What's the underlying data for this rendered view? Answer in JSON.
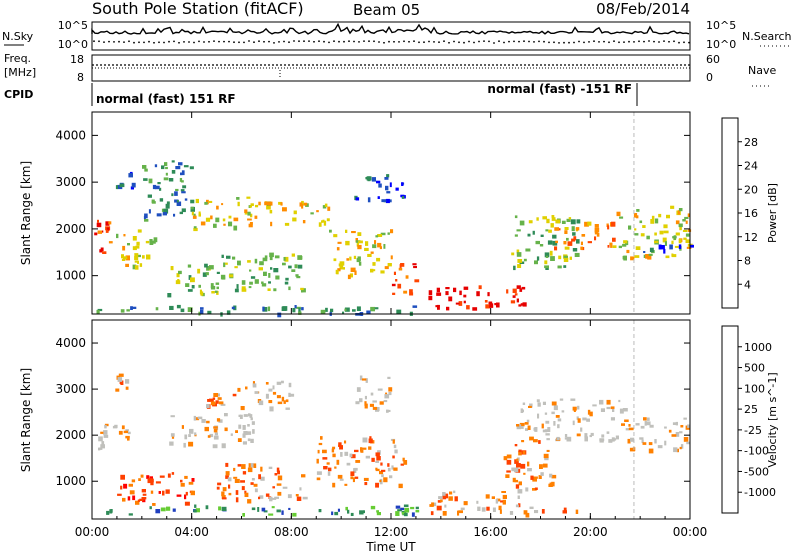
{
  "header": {
    "title": "South Pole Station (fitACF)",
    "beam": "Beam 05",
    "date": "08/Feb/2014"
  },
  "noise_panel": {
    "left_label": "N.Sky",
    "right_label": "N.Search",
    "left_ticks": [
      "10^5",
      "10^0"
    ],
    "right_ticks": [
      "10^5",
      "10^0"
    ]
  },
  "freq_panel": {
    "left_label_1": "Freq.",
    "left_label_2": "[MHz]",
    "right_label": "Nave",
    "left_ticks": [
      "18",
      "8"
    ],
    "right_ticks": [
      "60",
      "0"
    ]
  },
  "cpid_panel": {
    "label": "CPID",
    "program_1": "normal (fast) 151 RF",
    "program_2": "normal (fast) -151 RF",
    "program_change_hour": 21.75
  },
  "x_axis": {
    "label": "Time UT",
    "ticks": [
      "00:00",
      "04:00",
      "08:00",
      "12:00",
      "16:00",
      "20:00",
      "00:00"
    ],
    "range_hours": [
      0,
      24
    ]
  },
  "colors": {
    "power": [
      "#0000ff",
      "#1f4fbf",
      "#2e8b57",
      "#66b24a",
      "#e0d000",
      "#ff8c00",
      "#ff4500",
      "#e60000"
    ],
    "velocity": [
      "#ff0000",
      "#ff4000",
      "#ff8000",
      "#c0c0bc",
      "#c0c0bc",
      "#66cc33",
      "#2e8b57",
      "#1f3fbf"
    ],
    "ground_scatter": "#c0c0bc"
  },
  "chart_data": [
    {
      "type": "heatmap",
      "title": "",
      "xlabel": "",
      "ylabel": "Slant Range [km]",
      "xlim": [
        0,
        24
      ],
      "ylim": [
        180,
        4500
      ],
      "yticks": [
        "1000",
        "2000",
        "3000",
        "4000"
      ],
      "colorbar": {
        "label": "Power [dB]",
        "ticks": [
          "4",
          "8",
          "12",
          "16",
          "20",
          "24",
          "28"
        ],
        "range": [
          0,
          30
        ]
      },
      "regions": [
        {
          "t0": 0.0,
          "t1": 0.8,
          "r0": 1500,
          "r1": 2300,
          "level": 6
        },
        {
          "t0": 0.8,
          "t1": 2.5,
          "r0": 1200,
          "r1": 2000,
          "level": 4
        },
        {
          "t0": 0.9,
          "t1": 1.6,
          "r0": 2900,
          "r1": 3300,
          "level": 1
        },
        {
          "t0": 2.0,
          "t1": 4.0,
          "r0": 2200,
          "r1": 3500,
          "level": 2
        },
        {
          "t0": 3.0,
          "t1": 5.0,
          "r0": 600,
          "r1": 1300,
          "level": 3
        },
        {
          "t0": 4.0,
          "t1": 6.5,
          "r0": 2000,
          "r1": 2700,
          "level": 4
        },
        {
          "t0": 5.0,
          "t1": 8.5,
          "r0": 700,
          "r1": 1500,
          "level": 3
        },
        {
          "t0": 6.5,
          "t1": 9.5,
          "r0": 2100,
          "r1": 2600,
          "level": 4
        },
        {
          "t0": 9.5,
          "t1": 12.0,
          "r0": 1000,
          "r1": 2000,
          "level": 4
        },
        {
          "t0": 10.5,
          "t1": 12.5,
          "r0": 2600,
          "r1": 3200,
          "level": 1
        },
        {
          "t0": 12.0,
          "t1": 13.0,
          "r0": 600,
          "r1": 1300,
          "level": 6
        },
        {
          "t0": 0.0,
          "t1": 13.0,
          "r0": 200,
          "r1": 380,
          "level": 2
        },
        {
          "t0": 13.5,
          "t1": 17.3,
          "r0": 300,
          "r1": 800,
          "level": 7
        },
        {
          "t0": 16.8,
          "t1": 19.5,
          "r0": 1200,
          "r1": 2300,
          "level": 3
        },
        {
          "t0": 18.5,
          "t1": 21.0,
          "r0": 1600,
          "r1": 2200,
          "level": 5
        },
        {
          "t0": 21.0,
          "t1": 24.0,
          "r0": 1400,
          "r1": 2500,
          "level": 4
        },
        {
          "t0": 22.0,
          "t1": 24.0,
          "r0": 1500,
          "r1": 1700,
          "level": 1
        }
      ]
    },
    {
      "type": "heatmap",
      "title": "",
      "xlabel": "Time UT",
      "ylabel": "Slant Range [km]",
      "xlim": [
        0,
        24
      ],
      "ylim": [
        180,
        4500
      ],
      "yticks": [
        "1000",
        "2000",
        "3000",
        "4000"
      ],
      "colorbar": {
        "label": "Velocity [m s^-1]",
        "ticks": [
          "-1000",
          "-500",
          "-100",
          "-25",
          "25",
          "100",
          "500",
          "1000"
        ],
        "range": [
          -1200,
          1200
        ]
      },
      "regions": [
        {
          "t0": 0.0,
          "t1": 1.5,
          "r0": 1700,
          "r1": 2300,
          "level": 3
        },
        {
          "t0": 0.8,
          "t1": 1.5,
          "r0": 3000,
          "r1": 3350,
          "level": 2
        },
        {
          "t0": 1.0,
          "t1": 4.0,
          "r0": 500,
          "r1": 1200,
          "level": 1
        },
        {
          "t0": 3.0,
          "t1": 6.5,
          "r0": 1800,
          "r1": 2500,
          "level": 3
        },
        {
          "t0": 4.5,
          "t1": 6.0,
          "r0": 2600,
          "r1": 3100,
          "level": 2
        },
        {
          "t0": 5.0,
          "t1": 8.5,
          "r0": 600,
          "r1": 1400,
          "level": 2
        },
        {
          "t0": 6.0,
          "t1": 8.0,
          "r0": 2600,
          "r1": 3200,
          "level": 3
        },
        {
          "t0": 9.0,
          "t1": 12.5,
          "r0": 900,
          "r1": 2000,
          "level": 2
        },
        {
          "t0": 10.5,
          "t1": 12.0,
          "r0": 2500,
          "r1": 3300,
          "level": 3
        },
        {
          "t0": 0.0,
          "t1": 13.0,
          "r0": 300,
          "r1": 500,
          "level": 6
        },
        {
          "t0": 13.5,
          "t1": 17.3,
          "r0": 300,
          "r1": 800,
          "level": 2
        },
        {
          "t0": 17.0,
          "t1": 21.5,
          "r0": 1900,
          "r1": 2800,
          "level": 3
        },
        {
          "t0": 16.5,
          "t1": 18.5,
          "r0": 800,
          "r1": 1900,
          "level": 2
        },
        {
          "t0": 21.5,
          "t1": 24.0,
          "r0": 1700,
          "r1": 2400,
          "level": 3
        },
        {
          "t0": 17.3,
          "t1": 19.5,
          "r0": 300,
          "r1": 450,
          "level": 2
        }
      ]
    }
  ]
}
